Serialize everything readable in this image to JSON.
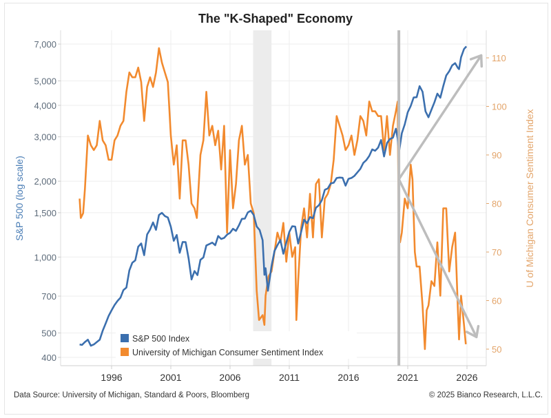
{
  "chart_data": {
    "type": "line",
    "title": "The \"K-Shaped\" Economy",
    "ylabel": "S&P 500 (log scale)",
    "y2label": "U of Michigan Consumer Sentiment Index",
    "y_scale": "log",
    "ylim": [
      380,
      7600
    ],
    "y2lim": [
      47,
      113
    ],
    "xlim": [
      1991.7,
      2027.6
    ],
    "x_ticks": [
      "1996",
      "2001",
      "2006",
      "2011",
      "2016",
      "2021",
      "2026"
    ],
    "y_ticks": [
      "7,000",
      "5,000",
      "4,000",
      "3,000",
      "2,000",
      "1,500",
      "1,000",
      "700",
      "500",
      "400"
    ],
    "y_tick_values": [
      7000,
      5000,
      4000,
      3000,
      2000,
      1500,
      1000,
      700,
      500,
      400
    ],
    "y2_ticks": [
      "110",
      "100",
      "90",
      "80",
      "70",
      "60",
      "50"
    ],
    "y2_tick_values": [
      110,
      100,
      90,
      80,
      70,
      60,
      50
    ],
    "grid": true,
    "legend_position": "bottom-left",
    "colors": {
      "sp500": "#3b6fae",
      "umich": "#f28a2e",
      "annotation": "#bdbdbd",
      "shade": "#ececec"
    },
    "shaded_period": [
      2007.95,
      2009.5
    ],
    "vertical_line_x": 2020.25,
    "annotations": {
      "arrow_origin": {
        "x": 2020.25,
        "y2": 85
      },
      "arrow_up_tip": {
        "x": 2027.2,
        "y2": 110.5
      },
      "arrow_down_tip": {
        "x": 2026.8,
        "y2": 52.5
      }
    },
    "series": [
      {
        "name": "S&P 500 Index",
        "axis": "left",
        "x": [
          1993.3,
          1993.5,
          1993.75,
          1994,
          1994.25,
          1994.5,
          1994.75,
          1995,
          1995.25,
          1995.5,
          1995.75,
          1996,
          1996.25,
          1996.5,
          1996.75,
          1997,
          1997.25,
          1997.5,
          1997.75,
          1998,
          1998.25,
          1998.5,
          1998.75,
          1999,
          1999.25,
          1999.5,
          1999.75,
          2000,
          2000.25,
          2000.5,
          2000.75,
          2001,
          2001.25,
          2001.5,
          2001.75,
          2002,
          2002.25,
          2002.5,
          2002.75,
          2003,
          2003.25,
          2003.5,
          2003.75,
          2004,
          2004.25,
          2004.5,
          2004.75,
          2005,
          2005.25,
          2005.5,
          2005.75,
          2006,
          2006.25,
          2006.5,
          2006.75,
          2007,
          2007.25,
          2007.5,
          2007.75,
          2008,
          2008.25,
          2008.5,
          2008.75,
          2008.9,
          2009,
          2009.2,
          2009.5,
          2009.75,
          2010,
          2010.25,
          2010.5,
          2010.75,
          2011,
          2011.25,
          2011.5,
          2011.75,
          2012,
          2012.25,
          2012.5,
          2012.75,
          2013,
          2013.25,
          2013.5,
          2013.75,
          2014,
          2014.25,
          2014.5,
          2014.75,
          2015,
          2015.25,
          2015.5,
          2015.75,
          2016,
          2016.25,
          2016.5,
          2016.75,
          2017,
          2017.25,
          2017.5,
          2017.75,
          2018,
          2018.25,
          2018.5,
          2018.75,
          2019,
          2019.25,
          2019.5,
          2019.75,
          2020,
          2020.15,
          2020.25,
          2020.5,
          2020.75,
          2021,
          2021.25,
          2021.5,
          2021.75,
          2022,
          2022.25,
          2022.5,
          2022.75,
          2023,
          2023.25,
          2023.5,
          2023.75,
          2024,
          2024.25,
          2024.5,
          2024.75,
          2025,
          2025.25,
          2025.33,
          2025.5,
          2025.75,
          2025.95
        ],
        "values": [
          450,
          448,
          460,
          470,
          445,
          450,
          460,
          470,
          510,
          545,
          584,
          615,
          645,
          670,
          690,
          740,
          757,
          885,
          950,
          970,
          1100,
          1133,
          1017,
          1229,
          1286,
          1372,
          1282,
          1469,
          1498,
          1454,
          1436,
          1320,
          1160,
          1224,
          1040,
          1148,
          1147,
          989,
          815,
          880,
          848,
          975,
          996,
          1112,
          1126,
          1141,
          1114,
          1212,
          1180,
          1191,
          1228,
          1248,
          1295,
          1270,
          1336,
          1418,
          1421,
          1503,
          1527,
          1468,
          1322,
          1280,
          1166,
          850,
          903,
          735,
          919,
          1057,
          1115,
          1169,
          1031,
          1141,
          1258,
          1326,
          1321,
          1131,
          1258,
          1408,
          1362,
          1441,
          1426,
          1569,
          1606,
          1682,
          1848,
          1872,
          1960,
          1972,
          2059,
          2068,
          2063,
          1920,
          2044,
          2060,
          2099,
          2168,
          2239,
          2363,
          2423,
          2519,
          2674,
          2641,
          2718,
          2914,
          2507,
          2834,
          2942,
          2977,
          3231,
          2954,
          2585,
          3100,
          3363,
          3756,
          3973,
          4298,
          4308,
          4766,
          4530,
          3785,
          3586,
          3840,
          4109,
          4450,
          4288,
          4770,
          5254,
          5460,
          5762,
          5882,
          5612,
          5569,
          6205,
          6688,
          6850
        ]
      },
      {
        "name": "University of Michigan Consumer Sentiment Index",
        "axis": "right",
        "x": [
          1993.3,
          1993.4,
          1993.6,
          1993.75,
          1994,
          1994.25,
          1994.5,
          1994.75,
          1995,
          1995.25,
          1995.5,
          1995.75,
          1996,
          1996.25,
          1996.5,
          1996.75,
          1997,
          1997.25,
          1997.5,
          1997.75,
          1998,
          1998.25,
          1998.5,
          1998.75,
          1999,
          1999.25,
          1999.5,
          1999.75,
          2000,
          2000.25,
          2000.5,
          2000.75,
          2001,
          2001.25,
          2001.5,
          2001.75,
          2002,
          2002.25,
          2002.5,
          2002.75,
          2003,
          2003.2,
          2003.5,
          2003.75,
          2004,
          2004.25,
          2004.5,
          2004.75,
          2005,
          2005.25,
          2005.5,
          2005.75,
          2006,
          2006.25,
          2006.5,
          2006.75,
          2007,
          2007.25,
          2007.5,
          2007.75,
          2008,
          2008.25,
          2008.45,
          2008.75,
          2008.9,
          2009,
          2009.25,
          2009.5,
          2009.75,
          2010,
          2010.25,
          2010.5,
          2010.75,
          2011,
          2011.25,
          2011.5,
          2011.6,
          2011.75,
          2012,
          2012.25,
          2012.5,
          2012.75,
          2013,
          2013.25,
          2013.5,
          2013.75,
          2014,
          2014.25,
          2014.5,
          2014.75,
          2015,
          2015.25,
          2015.5,
          2015.75,
          2016,
          2016.25,
          2016.5,
          2016.75,
          2017,
          2017.25,
          2017.5,
          2017.75,
          2018,
          2018.25,
          2018.5,
          2018.75,
          2019,
          2019.25,
          2019.5,
          2019.75,
          2020,
          2020.15,
          2020.25,
          2020.35,
          2020.5,
          2020.75,
          2021,
          2021.25,
          2021.4,
          2021.6,
          2021.75,
          2022,
          2022.25,
          2022.45,
          2022.6,
          2022.75,
          2023,
          2023.25,
          2023.5,
          2023.75,
          2024,
          2024.25,
          2024.5,
          2024.75,
          2025,
          2025.25,
          2025.33,
          2025.5,
          2025.75,
          2025.9
        ],
        "values": [
          81,
          77,
          78,
          83,
          94,
          92,
          91,
          92,
          97,
          93,
          92,
          89,
          89,
          93,
          94,
          96,
          97,
          103,
          107,
          106,
          106,
          108,
          105,
          97,
          104,
          106,
          104,
          107,
          112,
          109,
          107,
          105,
          94,
          88,
          92,
          81,
          93,
          93,
          88,
          80,
          79,
          77,
          90,
          93,
          103,
          94,
          96,
          92,
          95,
          87,
          96,
          74,
          91,
          79,
          84,
          93,
          96,
          88,
          90,
          80,
          78,
          62,
          56,
          57,
          55,
          61,
          65,
          66,
          70,
          74,
          72,
          76,
          68,
          74,
          69,
          71,
          56,
          64,
          75,
          79,
          73,
          82,
          73,
          84,
          85,
          73,
          81,
          82,
          84,
          89,
          98,
          96,
          94,
          91,
          92,
          94,
          90,
          93,
          98,
          97,
          94,
          101,
          99,
          99,
          98,
          98,
          91,
          98,
          90,
          96,
          99,
          101,
          72,
          72,
          74,
          81,
          79,
          88,
          85,
          70,
          67,
          67,
          59,
          50,
          58,
          59,
          64,
          63,
          72,
          61,
          79,
          79,
          66,
          71,
          74,
          57,
          52,
          61,
          55,
          51
        ]
      }
    ]
  },
  "footer": {
    "source": "Data Source: University of Michigan, Standard & Poors, Bloomberg",
    "copyright": "© 2025 Bianco Research, L.L.C."
  }
}
